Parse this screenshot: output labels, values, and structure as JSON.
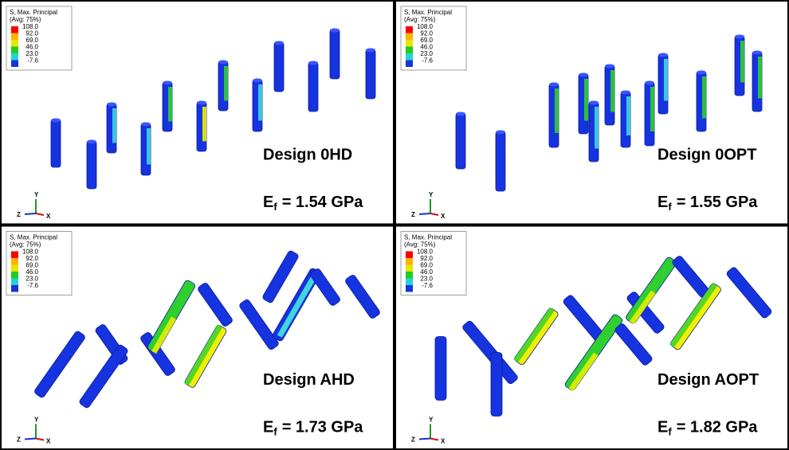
{
  "panels": [
    {
      "legend": {
        "title": "S, Max. Principal",
        "subtitle": "(Avg: 75%)",
        "values": [
          "108.0",
          "92.0",
          "69.0",
          "46.0",
          "23.0",
          "-7.6"
        ]
      },
      "design": "Design 0HD",
      "modulus": {
        "symbol": "E",
        "subscript": "f",
        "text": "= 1.54 GPa"
      },
      "axes": {
        "y": "Y",
        "z": "Z",
        "x": "X"
      }
    },
    {
      "legend": {
        "title": "S, Max. Principal",
        "subtitle": "(Avg: 75%)",
        "values": [
          "108.0",
          "92.0",
          "69.0",
          "46.0",
          "23.0",
          "-7.6"
        ]
      },
      "design": "Design 0OPT",
      "modulus": {
        "symbol": "E",
        "subscript": "f",
        "text": "= 1.55 GPa"
      },
      "axes": {
        "y": "Y",
        "z": "Z",
        "x": "X"
      }
    },
    {
      "legend": {
        "title": "S, Max. Principal",
        "subtitle": "(Avg: 75%)",
        "values": [
          "108.0",
          "92.0",
          "69.0",
          "46.0",
          "23.0",
          "-7.6"
        ]
      },
      "design": "Design AHD",
      "modulus": {
        "symbol": "E",
        "subscript": "f",
        "text": "= 1.73 GPa"
      },
      "axes": {
        "y": "Y",
        "z": "Z",
        "x": "X"
      }
    },
    {
      "legend": {
        "title": "S, Max. Principal",
        "subtitle": "(Avg: 75%)",
        "values": [
          "108.0",
          "92.0",
          "69.0",
          "46.0",
          "23.0",
          "-7.6"
        ]
      },
      "design": "Design AOPT",
      "modulus": {
        "symbol": "E",
        "subscript": "f",
        "text": "= 1.82 GPa"
      },
      "axes": {
        "y": "Y",
        "z": "Z",
        "x": "X"
      }
    }
  ]
}
